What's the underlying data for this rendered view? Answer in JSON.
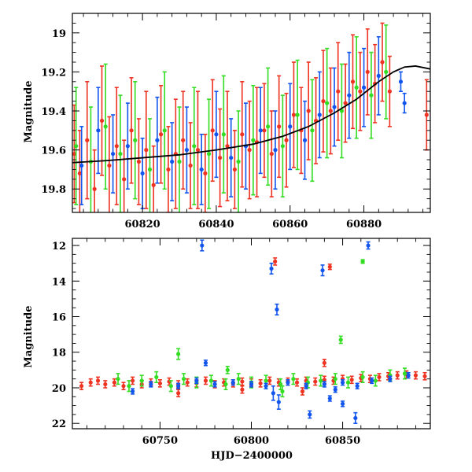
{
  "colors": {
    "red": "#ee3322",
    "green": "#33dd22",
    "blue": "#1155ee",
    "model": "#000000"
  },
  "chart_data": [
    {
      "type": "scatter",
      "title": "",
      "xlabel": "",
      "ylabel": "Magnitude",
      "xlim": [
        60801,
        60898
      ],
      "ylim": [
        19.92,
        18.9
      ],
      "y_inverted": true,
      "x_ticks": [
        60820,
        60840,
        60860,
        60880
      ],
      "y_ticks": [
        19,
        19.2,
        19.4,
        19.6,
        19.8
      ],
      "x_tick_labels": [
        "60820",
        "60840",
        "60860",
        "60880"
      ],
      "y_tick_labels": [
        "19",
        "19.2",
        "19.4",
        "19.6",
        "19.8"
      ],
      "model_curve": {
        "x": [
          60801,
          60810,
          60820,
          60830,
          60840,
          60850,
          60858,
          60865,
          60872,
          60878,
          60884,
          60888,
          60891,
          60894,
          60898
        ],
        "y": [
          19.665,
          19.655,
          19.64,
          19.625,
          19.6,
          19.57,
          19.53,
          19.48,
          19.41,
          19.34,
          19.25,
          19.2,
          19.175,
          19.17,
          19.185
        ]
      },
      "series": [
        {
          "color": "red",
          "points": [
            [
              60801.5,
              19.62,
              0.25
            ],
            [
              60803,
              19.72,
              0.22
            ],
            [
              60805,
              19.55,
              0.3
            ],
            [
              60807,
              19.8,
              0.2
            ],
            [
              60809,
              19.45,
              0.28
            ],
            [
              60811,
              19.68,
              0.25
            ],
            [
              60813,
              19.58,
              0.3
            ],
            [
              60815,
              19.75,
              0.2
            ],
            [
              60817,
              19.5,
              0.27
            ],
            [
              60819,
              19.66,
              0.22
            ],
            [
              60821,
              19.6,
              0.3
            ],
            [
              60823,
              19.78,
              0.2
            ],
            [
              60825,
              19.52,
              0.25
            ],
            [
              60827,
              19.7,
              0.22
            ],
            [
              60829,
              19.62,
              0.28
            ],
            [
              60831,
              19.55,
              0.25
            ],
            [
              60833,
              19.68,
              0.22
            ],
            [
              60835,
              19.6,
              0.3
            ],
            [
              60837,
              19.72,
              0.2
            ],
            [
              60839,
              19.5,
              0.26
            ],
            [
              60841,
              19.64,
              0.25
            ],
            [
              60843,
              19.58,
              0.28
            ],
            [
              60845,
              19.7,
              0.2
            ],
            [
              60847,
              19.52,
              0.27
            ],
            [
              60849,
              19.6,
              0.25
            ],
            [
              60851,
              19.56,
              0.28
            ],
            [
              60853,
              19.5,
              0.24
            ],
            [
              60855,
              19.62,
              0.22
            ],
            [
              60857,
              19.48,
              0.26
            ],
            [
              60859,
              19.55,
              0.24
            ],
            [
              60861,
              19.42,
              0.27
            ],
            [
              60863,
              19.5,
              0.22
            ],
            [
              60865,
              19.4,
              0.25
            ],
            [
              60867,
              19.45,
              0.22
            ],
            [
              60869,
              19.35,
              0.26
            ],
            [
              60871,
              19.4,
              0.22
            ],
            [
              60873,
              19.3,
              0.25
            ],
            [
              60875,
              19.36,
              0.2
            ],
            [
              60877,
              19.25,
              0.24
            ],
            [
              60879,
              19.3,
              0.2
            ],
            [
              60881,
              19.2,
              0.22
            ],
            [
              60883,
              19.26,
              0.2
            ],
            [
              60885,
              19.15,
              0.2
            ],
            [
              60887,
              19.3,
              0.18
            ],
            [
              60897,
              19.42,
              0.18
            ]
          ]
        },
        {
          "color": "green",
          "points": [
            [
              60802,
              19.58,
              0.3
            ],
            [
              60806,
              19.66,
              0.28
            ],
            [
              60810,
              19.48,
              0.32
            ],
            [
              60814,
              19.62,
              0.3
            ],
            [
              60818,
              19.55,
              0.3
            ],
            [
              60822,
              19.7,
              0.26
            ],
            [
              60826,
              19.5,
              0.3
            ],
            [
              60830,
              19.66,
              0.28
            ],
            [
              60834,
              19.58,
              0.3
            ],
            [
              60838,
              19.62,
              0.28
            ],
            [
              60842,
              19.52,
              0.3
            ],
            [
              60846,
              19.66,
              0.26
            ],
            [
              60850,
              19.55,
              0.28
            ],
            [
              60854,
              19.48,
              0.3
            ],
            [
              60858,
              19.58,
              0.26
            ],
            [
              60862,
              19.42,
              0.28
            ],
            [
              60866,
              19.5,
              0.26
            ],
            [
              60870,
              19.36,
              0.28
            ],
            [
              60874,
              19.4,
              0.24
            ],
            [
              60878,
              19.28,
              0.26
            ],
            [
              60882,
              19.32,
              0.22
            ],
            [
              60886,
              19.2,
              0.24
            ]
          ]
        },
        {
          "color": "blue",
          "points": [
            [
              60803.5,
              19.68,
              0.2
            ],
            [
              60808,
              19.5,
              0.22
            ],
            [
              60812,
              19.62,
              0.2
            ],
            [
              60816,
              19.58,
              0.22
            ],
            [
              60820,
              19.72,
              0.18
            ],
            [
              60824,
              19.55,
              0.22
            ],
            [
              60828,
              19.66,
              0.2
            ],
            [
              60832,
              19.6,
              0.22
            ],
            [
              60836,
              19.7,
              0.18
            ],
            [
              60840,
              19.52,
              0.22
            ],
            [
              60844,
              19.64,
              0.2
            ],
            [
              60848,
              19.58,
              0.22
            ],
            [
              60852,
              19.5,
              0.22
            ],
            [
              60856,
              19.6,
              0.2
            ],
            [
              60860,
              19.48,
              0.22
            ],
            [
              60864,
              19.55,
              0.2
            ],
            [
              60868,
              19.42,
              0.22
            ],
            [
              60872,
              19.38,
              0.2
            ],
            [
              60876,
              19.32,
              0.22
            ],
            [
              60880,
              19.28,
              0.2
            ],
            [
              60884,
              19.22,
              0.2
            ],
            [
              60890,
              19.25,
              0.05
            ],
            [
              60891,
              19.36,
              0.05
            ]
          ]
        }
      ]
    },
    {
      "type": "scatter",
      "title": "",
      "xlabel": "HJD−2400000",
      "ylabel": "Magnitude",
      "xlim": [
        60702,
        60898
      ],
      "ylim": [
        22.3,
        11.6
      ],
      "y_inverted": true,
      "x_ticks": [
        60750,
        60800,
        60850
      ],
      "y_ticks": [
        12,
        14,
        16,
        18,
        20,
        22
      ],
      "x_tick_labels": [
        "60750",
        "60800",
        "60850"
      ],
      "y_tick_labels": [
        "12",
        "14",
        "16",
        "18",
        "20",
        "22"
      ],
      "series": [
        {
          "color": "red",
          "points": [
            [
              60707,
              19.9,
              0.2
            ],
            [
              60712,
              19.7,
              0.2
            ],
            [
              60716,
              19.6,
              0.2
            ],
            [
              60720,
              19.8,
              0.2
            ],
            [
              60725,
              19.7,
              0.2
            ],
            [
              60730,
              19.9,
              0.2
            ],
            [
              60735,
              19.6,
              0.2
            ],
            [
              60740,
              19.8,
              0.2
            ],
            [
              60745,
              19.7,
              0.2
            ],
            [
              60750,
              19.75,
              0.2
            ],
            [
              60755,
              19.65,
              0.2
            ],
            [
              60760,
              19.8,
              0.2
            ],
            [
              60765,
              19.7,
              0.2
            ],
            [
              60770,
              19.75,
              0.2
            ],
            [
              60775,
              19.6,
              0.2
            ],
            [
              60780,
              19.8,
              0.2
            ],
            [
              60785,
              19.7,
              0.2
            ],
            [
              60790,
              19.75,
              0.2
            ],
            [
              60795,
              19.65,
              0.2
            ],
            [
              60800,
              19.7,
              0.2
            ],
            [
              60805,
              19.75,
              0.2
            ],
            [
              60810,
              19.6,
              0.2
            ],
            [
              60815,
              19.7,
              0.2
            ],
            [
              60820,
              19.65,
              0.2
            ],
            [
              60825,
              19.7,
              0.2
            ],
            [
              60830,
              19.6,
              0.2
            ],
            [
              60835,
              19.65,
              0.2
            ],
            [
              60840,
              19.55,
              0.2
            ],
            [
              60845,
              19.6,
              0.2
            ],
            [
              60850,
              19.5,
              0.2
            ],
            [
              60855,
              19.55,
              0.2
            ],
            [
              60860,
              19.45,
              0.2
            ],
            [
              60865,
              19.5,
              0.2
            ],
            [
              60870,
              19.4,
              0.2
            ],
            [
              60875,
              19.35,
              0.2
            ],
            [
              60880,
              19.3,
              0.2
            ],
            [
              60885,
              19.25,
              0.2
            ],
            [
              60890,
              19.3,
              0.2
            ],
            [
              60895,
              19.35,
              0.2
            ],
            [
              60813,
              12.9,
              0.2
            ],
            [
              60843,
              13.2,
              0.15
            ],
            [
              60840,
              18.6,
              0.2
            ],
            [
              60760,
              20.3,
              0.2
            ],
            [
              60795,
              20.1,
              0.2
            ],
            [
              60828,
              20.2,
              0.2
            ]
          ]
        },
        {
          "color": "green",
          "points": [
            [
              60727,
              19.5,
              0.3
            ],
            [
              60733,
              19.9,
              0.3
            ],
            [
              60740,
              19.6,
              0.3
            ],
            [
              60748,
              19.4,
              0.3
            ],
            [
              60756,
              19.9,
              0.3
            ],
            [
              60763,
              19.5,
              0.3
            ],
            [
              60770,
              19.7,
              0.3
            ],
            [
              60778,
              19.6,
              0.3
            ],
            [
              60786,
              19.8,
              0.3
            ],
            [
              60793,
              19.5,
              0.3
            ],
            [
              60800,
              19.7,
              0.3
            ],
            [
              60808,
              19.6,
              0.3
            ],
            [
              60816,
              19.8,
              0.3
            ],
            [
              60823,
              19.5,
              0.3
            ],
            [
              60831,
              19.7,
              0.3
            ],
            [
              60838,
              19.6,
              0.3
            ],
            [
              60846,
              19.5,
              0.3
            ],
            [
              60853,
              19.7,
              0.3
            ],
            [
              60861,
              19.4,
              0.3
            ],
            [
              60868,
              19.6,
              0.3
            ],
            [
              60876,
              19.3,
              0.3
            ],
            [
              60884,
              19.2,
              0.3
            ],
            [
              60760,
              18.1,
              0.3
            ],
            [
              60787,
              19.0,
              0.2
            ],
            [
              60849,
              17.3,
              0.2
            ],
            [
              60861,
              12.9,
              0.1
            ],
            [
              60817,
              20.2,
              0.3
            ]
          ]
        },
        {
          "color": "blue",
          "points": [
            [
              60735,
              20.2,
              0.15
            ],
            [
              60745,
              19.8,
              0.15
            ],
            [
              60760,
              19.9,
              0.15
            ],
            [
              60770,
              19.6,
              0.15
            ],
            [
              60780,
              19.8,
              0.15
            ],
            [
              60790,
              19.7,
              0.15
            ],
            [
              60800,
              19.8,
              0.15
            ],
            [
              60808,
              19.9,
              0.15
            ],
            [
              60812,
              20.3,
              0.4
            ],
            [
              60815,
              20.8,
              0.4
            ],
            [
              60820,
              19.7,
              0.15
            ],
            [
              60830,
              19.9,
              0.15
            ],
            [
              60840,
              19.8,
              0.15
            ],
            [
              60846,
              20.1,
              0.15
            ],
            [
              60850,
              19.7,
              0.15
            ],
            [
              60858,
              19.9,
              0.15
            ],
            [
              60866,
              19.6,
              0.15
            ],
            [
              60876,
              19.5,
              0.15
            ],
            [
              60886,
              19.3,
              0.15
            ],
            [
              60773,
              12.0,
              0.3
            ],
            [
              60811,
              13.3,
              0.3
            ],
            [
              60814,
              15.6,
              0.3
            ],
            [
              60839,
              13.4,
              0.3
            ],
            [
              60864,
              12.0,
              0.2
            ],
            [
              60775,
              18.6,
              0.15
            ],
            [
              60832,
              21.5,
              0.2
            ],
            [
              60850,
              20.9,
              0.15
            ],
            [
              60857,
              21.7,
              0.3
            ],
            [
              60843,
              20.6,
              0.15
            ]
          ]
        }
      ]
    }
  ]
}
